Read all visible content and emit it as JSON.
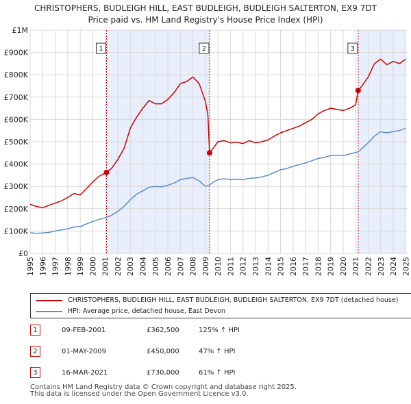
{
  "chart_data": {
    "type": "line",
    "title": "CHRISTOPHERS, BUDLEIGH HILL, EAST BUDLEIGH, BUDLEIGH SALTERTON, EX9 7DT",
    "subtitle": "Price paid vs. HM Land Registry's House Price Index (HPI)",
    "xlim": [
      1995,
      2025.2
    ],
    "ylim": [
      0,
      1000000
    ],
    "x_ticks": [
      "1995",
      "1996",
      "1997",
      "1998",
      "1999",
      "2000",
      "2001",
      "2002",
      "2003",
      "2004",
      "2005",
      "2006",
      "2007",
      "2008",
      "2009",
      "2010",
      "2011",
      "2012",
      "2013",
      "2014",
      "2015",
      "2016",
      "2017",
      "2018",
      "2019",
      "2020",
      "2021",
      "2022",
      "2023",
      "2024",
      "2025"
    ],
    "y_ticks": [
      {
        "value": 0,
        "label": "£0"
      },
      {
        "value": 100000,
        "label": "£100K"
      },
      {
        "value": 200000,
        "label": "£200K"
      },
      {
        "value": 300000,
        "label": "£300K"
      },
      {
        "value": 400000,
        "label": "£400K"
      },
      {
        "value": 500000,
        "label": "£500K"
      },
      {
        "value": 600000,
        "label": "£600K"
      },
      {
        "value": 700000,
        "label": "£700K"
      },
      {
        "value": 800000,
        "label": "£800K"
      },
      {
        "value": 900000,
        "label": "£900K"
      },
      {
        "value": 1000000,
        "label": "£1M"
      }
    ],
    "shaded_periods": [
      [
        2001.1,
        2009.33
      ],
      [
        2021.2,
        2025.0
      ]
    ],
    "series": [
      {
        "name": "CHRISTOPHERS, BUDLEIGH HILL, EAST BUDLEIGH, BUDLEIGH SALTERTON, EX9 7DT (detached house)",
        "color": "#cc0000",
        "x": [
          1995.0,
          1995.5,
          1996.0,
          1996.5,
          1997.0,
          1997.5,
          1998.0,
          1998.5,
          1999.0,
          1999.5,
          2000.0,
          2000.5,
          2001.1,
          2001.5,
          2002.0,
          2002.5,
          2003.0,
          2003.5,
          2004.0,
          2004.5,
          2005.0,
          2005.5,
          2006.0,
          2006.5,
          2007.0,
          2007.5,
          2008.0,
          2008.5,
          2009.0,
          2009.2,
          2009.33,
          2009.6,
          2010.0,
          2010.5,
          2011.0,
          2011.5,
          2012.0,
          2012.5,
          2013.0,
          2013.5,
          2014.0,
          2014.5,
          2015.0,
          2015.5,
          2016.0,
          2016.5,
          2017.0,
          2017.5,
          2018.0,
          2018.5,
          2019.0,
          2019.5,
          2020.0,
          2020.5,
          2021.0,
          2021.2,
          2021.5,
          2022.0,
          2022.5,
          2023.0,
          2023.5,
          2024.0,
          2024.5,
          2025.0
        ],
        "y": [
          220000,
          210000,
          205000,
          215000,
          225000,
          235000,
          250000,
          268000,
          262000,
          290000,
          320000,
          345000,
          362500,
          380000,
          420000,
          470000,
          560000,
          610000,
          650000,
          685000,
          670000,
          670000,
          690000,
          720000,
          760000,
          770000,
          790000,
          760000,
          680000,
          620000,
          450000,
          470000,
          500000,
          505000,
          495000,
          498000,
          492000,
          505000,
          495000,
          500000,
          508000,
          525000,
          540000,
          550000,
          560000,
          570000,
          585000,
          600000,
          625000,
          640000,
          650000,
          645000,
          640000,
          650000,
          665000,
          730000,
          750000,
          790000,
          850000,
          870000,
          845000,
          860000,
          850000,
          870000
        ]
      },
      {
        "name": "HPI: Average price, detached house, East Devon",
        "color": "#5b8ec9",
        "x": [
          1995.0,
          1995.5,
          1996.0,
          1996.5,
          1997.0,
          1997.5,
          1998.0,
          1998.5,
          1999.0,
          1999.5,
          2000.0,
          2000.5,
          2001.1,
          2001.5,
          2002.0,
          2002.5,
          2003.0,
          2003.5,
          2004.0,
          2004.5,
          2005.0,
          2005.5,
          2006.0,
          2006.5,
          2007.0,
          2007.5,
          2008.0,
          2008.5,
          2009.0,
          2009.33,
          2009.6,
          2010.0,
          2010.5,
          2011.0,
          2011.5,
          2012.0,
          2012.5,
          2013.0,
          2013.5,
          2014.0,
          2014.5,
          2015.0,
          2015.5,
          2016.0,
          2016.5,
          2017.0,
          2017.5,
          2018.0,
          2018.5,
          2019.0,
          2019.5,
          2020.0,
          2020.5,
          2021.0,
          2021.2,
          2021.5,
          2022.0,
          2022.5,
          2023.0,
          2023.5,
          2024.0,
          2024.5,
          2025.0
        ],
        "y": [
          92000,
          90000,
          91000,
          94000,
          100000,
          105000,
          110000,
          118000,
          120000,
          132000,
          143000,
          152000,
          161000,
          170000,
          188000,
          210000,
          240000,
          265000,
          280000,
          296000,
          300000,
          298000,
          305000,
          315000,
          330000,
          336000,
          340000,
          325000,
          300000,
          306000,
          318000,
          330000,
          334000,
          330000,
          332000,
          330000,
          336000,
          338000,
          342000,
          350000,
          362000,
          375000,
          380000,
          390000,
          398000,
          405000,
          415000,
          425000,
          430000,
          438000,
          440000,
          438000,
          445000,
          452000,
          455000,
          470000,
          495000,
          525000,
          545000,
          540000,
          545000,
          550000,
          560000
        ]
      }
    ],
    "markers": [
      {
        "label": "1",
        "x": 2001.1,
        "y": 362500
      },
      {
        "label": "2",
        "x": 2009.33,
        "y": 450000
      },
      {
        "label": "3",
        "x": 2021.2,
        "y": 730000
      }
    ]
  },
  "legend": {
    "property_label": "CHRISTOPHERS, BUDLEIGH HILL, EAST BUDLEIGH, BUDLEIGH SALTERTON, EX9 7DT (detached house)",
    "hpi_label": "HPI: Average price, detached house, East Devon"
  },
  "sales": [
    {
      "num": "1",
      "date": "09-FEB-2001",
      "price": "£362,500",
      "hpi": "125% ↑ HPI"
    },
    {
      "num": "2",
      "date": "01-MAY-2009",
      "price": "£450,000",
      "hpi": "47% ↑ HPI"
    },
    {
      "num": "3",
      "date": "16-MAR-2021",
      "price": "£730,000",
      "hpi": "61% ↑ HPI"
    }
  ],
  "footer": {
    "line1": "Contains HM Land Registry data © Crown copyright and database right 2025.",
    "line2": "This data is licensed under the Open Government Licence v3.0."
  }
}
